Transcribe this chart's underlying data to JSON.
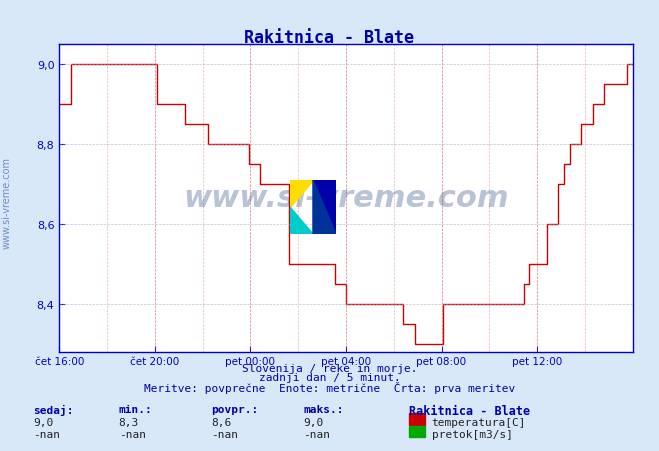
{
  "title": "Rakitnica - Blate",
  "title_color": "#0000aa",
  "bg_color": "#d8e8f8",
  "plot_bg_color": "#ffffff",
  "grid_color_major": "#aaaacc",
  "grid_color_minor": "#ddddee",
  "xlabel_ticks": [
    "čet 16:00",
    "čet 20:00",
    "pet 00:00",
    "pet 04:00",
    "pet 08:00",
    "pet 12:00"
  ],
  "xlabel_tick_positions": [
    0.0,
    0.1667,
    0.3333,
    0.5,
    0.6667,
    0.8333
  ],
  "ylim": [
    8.3,
    9.05
  ],
  "yticks": [
    8.4,
    8.6,
    8.8,
    9.0
  ],
  "ylabel_color": "#000066",
  "axis_color": "#0000cc",
  "line_color": "#cc0000",
  "watermark_text": "www.si-vreme.com",
  "watermark_color": "#1a3a7a",
  "watermark_alpha": 0.25,
  "footer_line1": "Slovenija / reke in morje.",
  "footer_line2": "zadnji dan / 5 minut.",
  "footer_line3": "Meritve: povprečne  Enote: metrične  Črta: prva meritev",
  "footer_color": "#0000aa",
  "stats_headers": [
    "sedaj:",
    "min.:",
    "povpr.:",
    "maks.:"
  ],
  "stats_values_temp": [
    "9,0",
    "8,3",
    "8,6",
    "9,0"
  ],
  "stats_values_flow": [
    "-nan",
    "-nan",
    "-nan",
    "-nan"
  ],
  "legend_station": "Rakitnica - Blate",
  "legend_temp_label": "temperatura[C]",
  "legend_flow_label": "pretok[m3/s]",
  "temp_color": "#cc0000",
  "flow_color": "#00aa00",
  "sidebar_text": "www.si-vreme.com",
  "sidebar_color": "#4466aa",
  "temp_data_x": [
    0.0,
    0.01,
    0.02,
    0.03,
    0.04,
    0.05,
    0.06,
    0.07,
    0.08,
    0.09,
    0.1,
    0.11,
    0.12,
    0.13,
    0.14,
    0.15,
    0.16,
    0.17,
    0.18,
    0.19,
    0.2,
    0.21,
    0.22,
    0.23,
    0.24,
    0.25,
    0.26,
    0.27,
    0.28,
    0.29,
    0.3,
    0.31,
    0.32,
    0.33,
    0.34,
    0.35,
    0.36,
    0.37,
    0.38,
    0.39,
    0.4,
    0.41,
    0.42,
    0.43,
    0.44,
    0.45,
    0.46,
    0.47,
    0.48,
    0.49,
    0.5,
    0.51,
    0.52,
    0.53,
    0.54,
    0.55,
    0.56,
    0.57,
    0.58,
    0.59,
    0.6,
    0.61,
    0.62,
    0.63,
    0.64,
    0.65,
    0.66,
    0.67,
    0.68,
    0.69,
    0.7,
    0.71,
    0.72,
    0.73,
    0.74,
    0.75,
    0.76,
    0.77,
    0.78,
    0.79,
    0.8,
    0.81,
    0.82,
    0.83,
    0.84,
    0.85,
    0.86,
    0.87,
    0.88,
    0.89,
    0.9,
    0.91,
    0.92,
    0.93,
    0.94,
    0.95,
    0.96,
    0.97,
    0.98,
    0.99,
    1.0
  ],
  "temp_data_y": [
    8.9,
    8.9,
    9.0,
    9.0,
    9.0,
    9.0,
    9.0,
    9.0,
    9.0,
    9.0,
    9.0,
    9.0,
    9.0,
    9.0,
    9.0,
    9.0,
    9.0,
    8.9,
    8.9,
    8.9,
    8.9,
    8.9,
    8.85,
    8.85,
    8.85,
    8.85,
    8.8,
    8.8,
    8.8,
    8.8,
    8.8,
    8.8,
    8.8,
    8.75,
    8.75,
    8.7,
    8.7,
    8.7,
    8.7,
    8.7,
    8.5,
    8.5,
    8.5,
    8.5,
    8.5,
    8.5,
    8.5,
    8.5,
    8.45,
    8.45,
    8.4,
    8.4,
    8.4,
    8.4,
    8.4,
    8.4,
    8.4,
    8.4,
    8.4,
    8.4,
    8.35,
    8.35,
    8.3,
    8.3,
    8.3,
    8.3,
    8.3,
    8.4,
    8.4,
    8.4,
    8.4,
    8.4,
    8.4,
    8.4,
    8.4,
    8.4,
    8.4,
    8.4,
    8.4,
    8.4,
    8.4,
    8.45,
    8.5,
    8.5,
    8.5,
    8.6,
    8.6,
    8.7,
    8.75,
    8.8,
    8.8,
    8.85,
    8.85,
    8.9,
    8.9,
    8.95,
    8.95,
    8.95,
    8.95,
    9.0,
    9.0
  ]
}
